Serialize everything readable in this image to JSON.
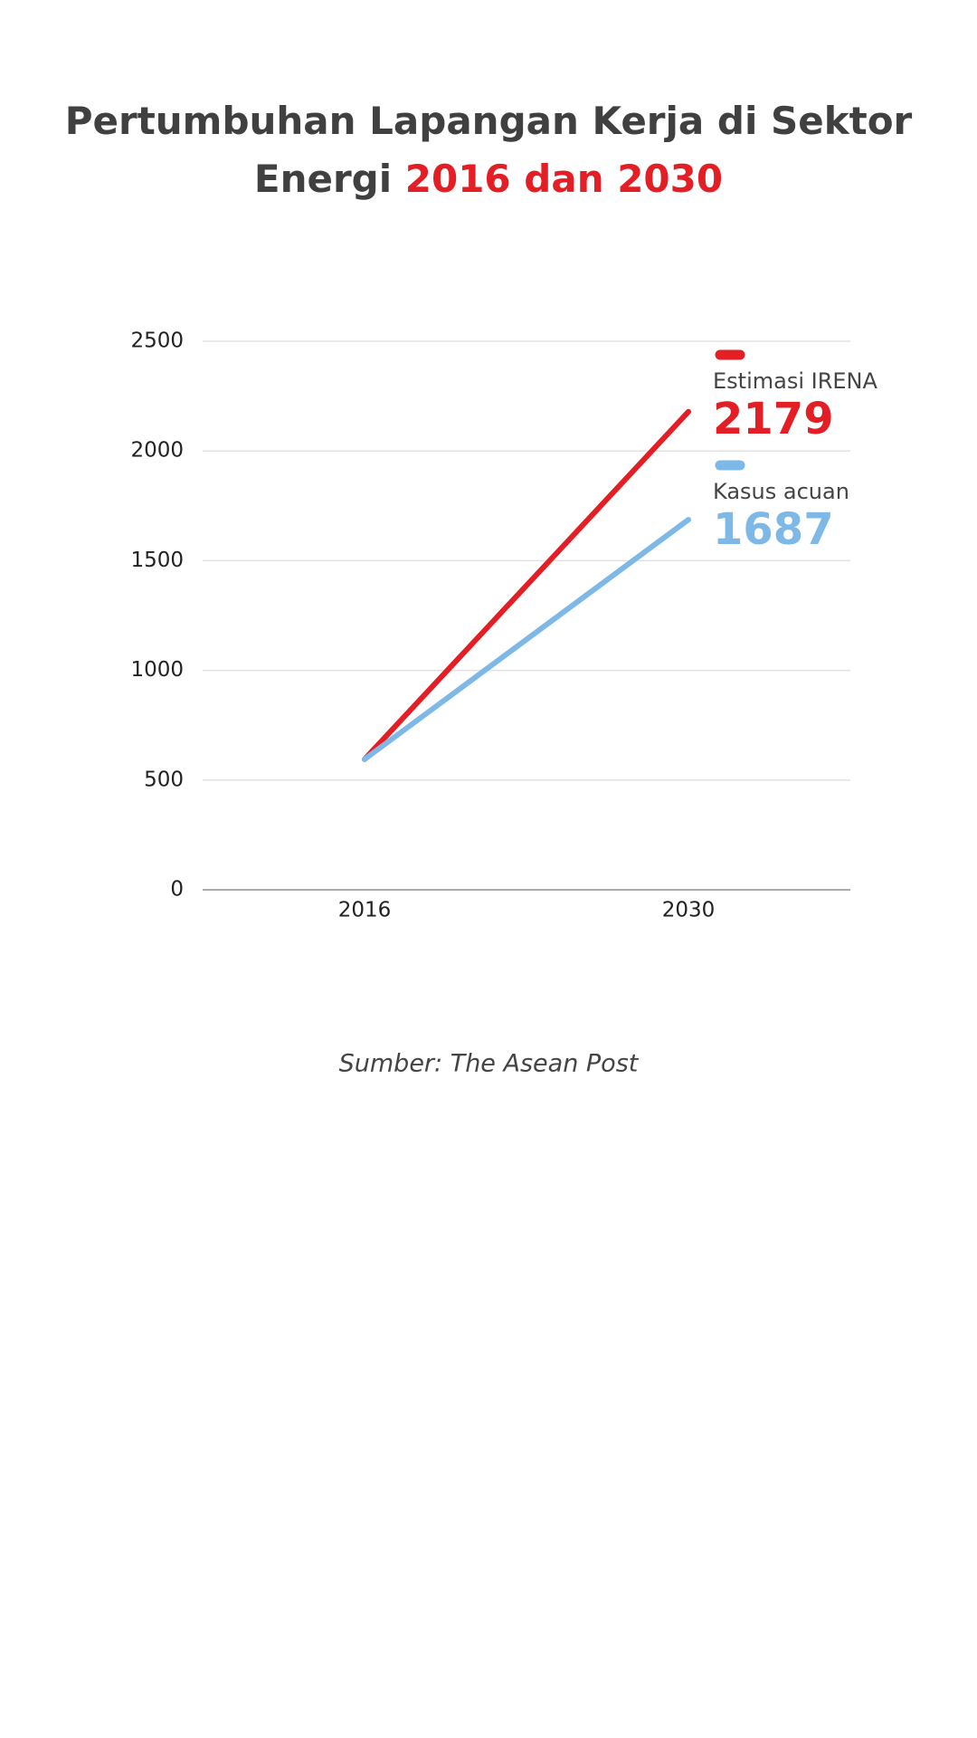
{
  "chart_data": {
    "type": "line",
    "title": "Pertumbuhan Lapangan Kerja di Sektor Energi",
    "title_highlight": "2016 dan 2030",
    "categories": [
      "2016",
      "2030"
    ],
    "series": [
      {
        "name": "Estimasi IRENA",
        "color": "#e31e24",
        "values": [
          595,
          2179
        ]
      },
      {
        "name": "Kasus acuan",
        "color": "#7db8e6",
        "values": [
          595,
          1687
        ]
      }
    ],
    "ylim": [
      0,
      2500
    ],
    "yticks": [
      0,
      500,
      1000,
      1500,
      2000,
      2500
    ],
    "grid": true,
    "source": "Sumber: The Asean Post"
  }
}
